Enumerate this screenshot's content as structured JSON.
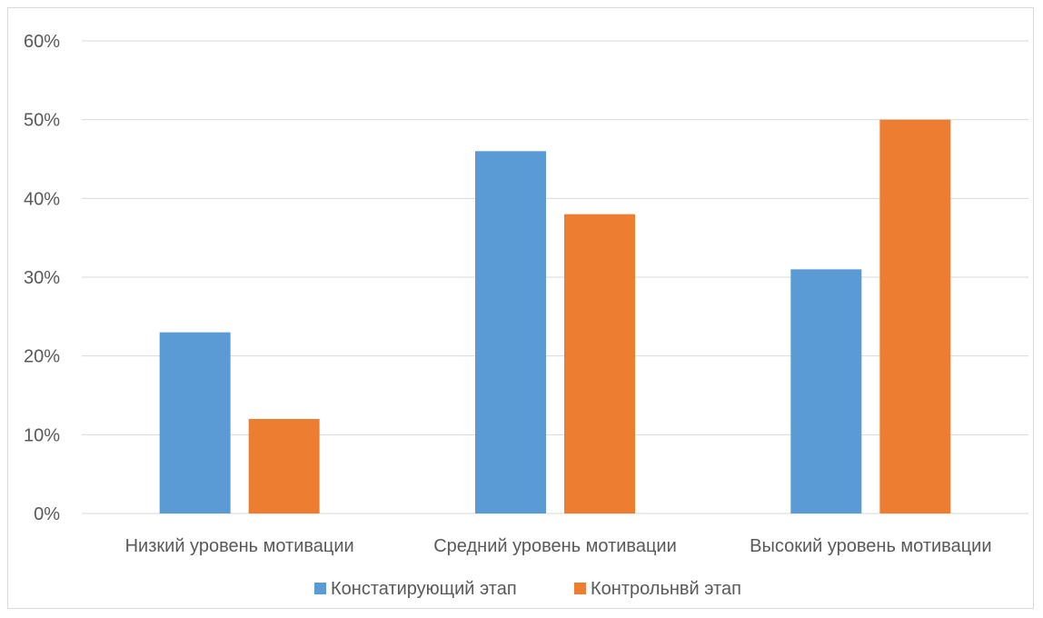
{
  "chart_data": {
    "type": "bar",
    "title": "",
    "xlabel": "",
    "ylabel": "",
    "categories": [
      "Низкий уровень мотивации",
      "Средний уровень мотивации",
      "Высокий уровень мотивации"
    ],
    "series": [
      {
        "name": "Констатирующий этап",
        "values": [
          23,
          46,
          31
        ],
        "color": "#5B9BD5"
      },
      {
        "name": "Контрольнвй этап",
        "values": [
          12,
          38,
          50
        ],
        "color": "#ED7D31"
      }
    ],
    "ylim": [
      0,
      60
    ],
    "yticks": [
      0,
      10,
      20,
      30,
      40,
      50,
      60
    ],
    "ytick_labels": [
      "0%",
      "10%",
      "20%",
      "30%",
      "40%",
      "50%",
      "60%"
    ],
    "grid": true,
    "legend_position": "bottom"
  }
}
